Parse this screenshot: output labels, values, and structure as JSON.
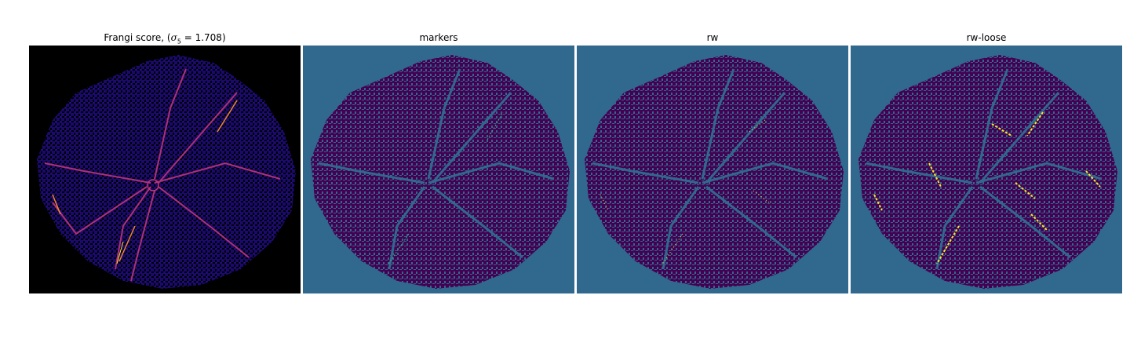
{
  "panels": [
    {
      "title_prefix": "Frangi score, (",
      "title_math": "σ",
      "title_sub": "5",
      "title_suffix": " = 1.708)",
      "colormap": "inferno"
    },
    {
      "title": "markers",
      "colormap": "viridis"
    },
    {
      "title": "rw",
      "colormap": "viridis"
    },
    {
      "title": "rw-loose",
      "colormap": "viridis"
    }
  ],
  "colors": {
    "black": "#000000",
    "deep_blue": "#1a0a6e",
    "teal_bg": "#31688e",
    "dark_purple": "#440154",
    "yellow": "#fde725",
    "orange": "#f0872b"
  }
}
